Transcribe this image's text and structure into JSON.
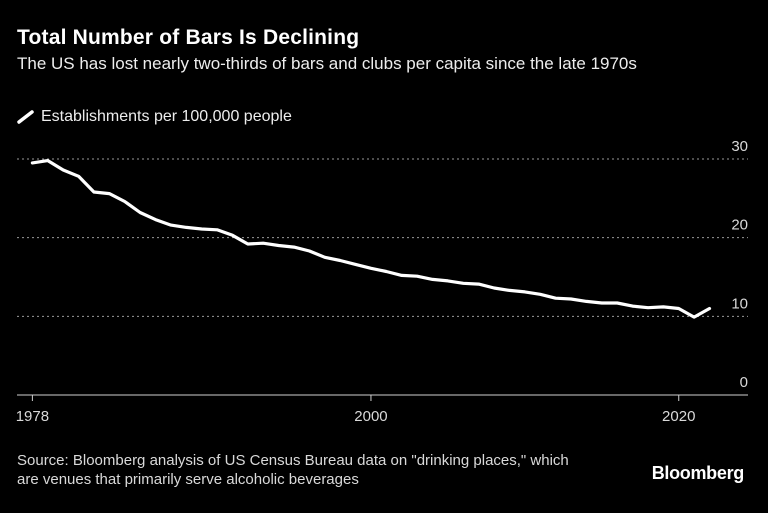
{
  "title": "Total Number of Bars Is Declining",
  "subtitle": "The US has lost nearly two-thirds of bars and clubs per capita since the late 1970s",
  "legend_label": "Establishments per 100,000 people",
  "source": "Source: Bloomberg analysis of US Census Bureau data on \"drinking places,\" which are venues that primarily serve alcoholic beverages",
  "brand": "Bloomberg",
  "colors": {
    "background": "#000000",
    "line": "#ffffff",
    "grid": "#9a9a9a",
    "text": "#d9d9d9"
  },
  "chart_data": {
    "type": "line",
    "title": "Total Number of Bars Is Declining",
    "ylabel": "",
    "xlabel": "",
    "x_ticks": [
      1978,
      2000,
      2020
    ],
    "y_ticks": [
      0,
      10,
      20,
      30
    ],
    "xlim": [
      1977,
      2024.5
    ],
    "ylim": [
      0,
      30
    ],
    "grid": true,
    "legend_position": "top-left",
    "series": [
      {
        "name": "Establishments per 100,000 people",
        "x": [
          1978,
          1979,
          1980,
          1981,
          1982,
          1983,
          1984,
          1985,
          1986,
          1987,
          1988,
          1989,
          1990,
          1991,
          1992,
          1993,
          1994,
          1995,
          1996,
          1997,
          1998,
          1999,
          2000,
          2001,
          2002,
          2003,
          2004,
          2005,
          2006,
          2007,
          2008,
          2009,
          2010,
          2011,
          2012,
          2013,
          2014,
          2015,
          2016,
          2017,
          2018,
          2019,
          2020,
          2021,
          2022
        ],
        "y": [
          29.5,
          29.8,
          28.6,
          27.8,
          25.8,
          25.6,
          24.6,
          23.2,
          22.3,
          21.6,
          21.3,
          21.1,
          21.0,
          20.3,
          19.2,
          19.3,
          19.0,
          18.8,
          18.3,
          17.5,
          17.1,
          16.6,
          16.1,
          15.7,
          15.2,
          15.1,
          14.7,
          14.5,
          14.2,
          14.1,
          13.6,
          13.3,
          13.1,
          12.8,
          12.3,
          12.2,
          11.9,
          11.7,
          11.7,
          11.3,
          11.1,
          11.2,
          11.0,
          9.9,
          11.0
        ]
      }
    ]
  }
}
